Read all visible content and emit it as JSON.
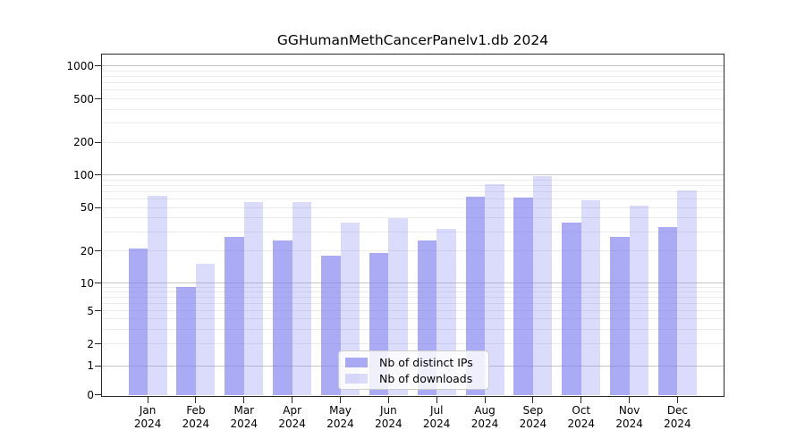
{
  "chart_data": {
    "type": "bar",
    "title": "GGHumanMethCancerPanelv1.db 2024",
    "categories": [
      "Jan 2024",
      "Feb 2024",
      "Mar 2024",
      "Apr 2024",
      "May 2024",
      "Jun 2024",
      "Jul 2024",
      "Aug 2024",
      "Sep 2024",
      "Oct 2024",
      "Nov 2024",
      "Dec 2024"
    ],
    "series": [
      {
        "name": "Nb of distinct IPs",
        "values": [
          21,
          9,
          27,
          25,
          18,
          19,
          25,
          63,
          62,
          36,
          27,
          33
        ],
        "fill": "rgba(124,124,240,0.65)"
      },
      {
        "name": "Nb of downloads",
        "values": [
          64,
          15,
          56,
          56,
          36,
          40,
          32,
          82,
          98,
          58,
          52,
          72
        ],
        "fill": "rgba(124,124,240,0.28)"
      }
    ],
    "yscale": "symlog",
    "yticks": [
      0,
      1,
      2,
      5,
      10,
      20,
      50,
      100,
      200,
      500,
      1000
    ],
    "ylim": [
      0,
      1280
    ],
    "xlabel": "",
    "ylabel": "",
    "grid": "horizontal",
    "legend_position": "lower center inside plot"
  },
  "colors": {
    "bar_base": "#7c7cf0",
    "grid_major": "#c6c6c6",
    "grid_minor": "#ebebeb",
    "axis": "#2a2a2a",
    "text": "#000000",
    "legend_border": "#cccccc",
    "background": "#ffffff"
  }
}
